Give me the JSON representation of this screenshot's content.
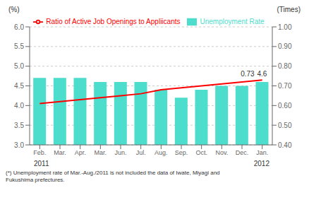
{
  "chart_data": {
    "type": "bar",
    "categories": [
      "Feb.",
      "Mar.",
      "Apr.",
      "Mar.",
      "Jun.",
      "Jul.",
      "Aug.",
      "Sep.",
      "Oct.",
      "Nov.",
      "Dec.",
      "Jan."
    ],
    "series": [
      {
        "name": "Unemployment Rate",
        "type": "bar",
        "color": "#4DDDCC",
        "values": [
          4.7,
          4.7,
          4.7,
          4.6,
          4.6,
          4.6,
          4.4,
          4.2,
          4.4,
          4.5,
          4.5,
          4.6
        ]
      },
      {
        "name": "Ratio of Active Job Openings to Appliicants",
        "type": "line",
        "color": "#FF0000",
        "axis": "y2",
        "values": [
          0.61,
          0.62,
          0.63,
          0.64,
          0.65,
          0.66,
          0.68,
          0.69,
          0.7,
          0.71,
          0.72,
          0.73
        ]
      }
    ],
    "ylabel": "(%)",
    "y2label": "(Times)",
    "ylim": [
      3.0,
      6.0
    ],
    "yticks": [
      {
        "value": 3.0,
        "label": "3.0"
      },
      {
        "value": 3.5,
        "label": "3.5"
      },
      {
        "value": 4.0,
        "label": "4.0"
      },
      {
        "value": 4.5,
        "label": "4.5"
      },
      {
        "value": 5.0,
        "label": "5.0"
      },
      {
        "value": 5.5,
        "label": "5.5"
      },
      {
        "value": 6.0,
        "label": "6.0"
      }
    ],
    "y2lim": [
      0.4,
      1.0
    ],
    "y2ticks": [
      {
        "value": 0.4,
        "label": "0.40"
      },
      {
        "value": 0.5,
        "label": "0.50"
      },
      {
        "value": 0.6,
        "label": "0.60"
      },
      {
        "value": 0.7,
        "label": "0.70"
      },
      {
        "value": 0.8,
        "label": "0.80"
      },
      {
        "value": 0.9,
        "label": "0.90"
      },
      {
        "value": 1.0,
        "label": "1.00"
      }
    ],
    "grid": true,
    "legend": "top",
    "annotations": [
      "2011",
      "2012",
      "4.6",
      "0.73",
      "(*) Unemployment rate of Mar.-Aug./2011 is not included the data of Iwate, Miyagi and\nFukushima prefectures."
    ]
  }
}
